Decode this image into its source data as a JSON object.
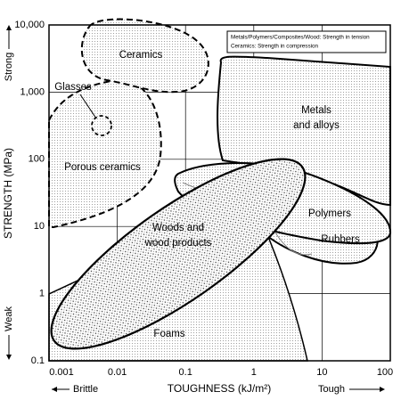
{
  "chart_data": {
    "type": "region",
    "x_label": "TOUGHNESS (kJ/m²)",
    "y_label": "STRENGTH (MPa)",
    "xlim": [
      0.001,
      100
    ],
    "ylim": [
      0.1,
      10000
    ],
    "xscale": "log",
    "yscale": "log",
    "grid": true,
    "xticks": [
      0.001,
      0.01,
      0.1,
      1,
      10,
      100
    ],
    "yticks": [
      0.1,
      1,
      10,
      100,
      {
        "value": 1000,
        "label": "1,000"
      },
      {
        "value": 10000,
        "label": "10,000"
      }
    ],
    "x_low": "Brittle",
    "x_high": "Tough",
    "y_low": "Weak",
    "y_high": "Strong",
    "legend": [
      "Metals/Polymers/Composites/Wood: Strength in tension",
      "Ceramics: Strength in compression"
    ],
    "regions": [
      {
        "label": [
          "Ceramics"
        ]
      },
      {
        "label": [
          "Glasses"
        ]
      },
      {
        "label": [
          "Porous ceramics"
        ]
      },
      {
        "label": [
          "Metals",
          "and alloys"
        ]
      },
      {
        "label": [
          "Polymers"
        ]
      },
      {
        "label": [
          "Rubbers"
        ]
      },
      {
        "label": [
          "Woods and",
          "wood products"
        ]
      },
      {
        "label": [
          "Foams"
        ]
      }
    ]
  }
}
